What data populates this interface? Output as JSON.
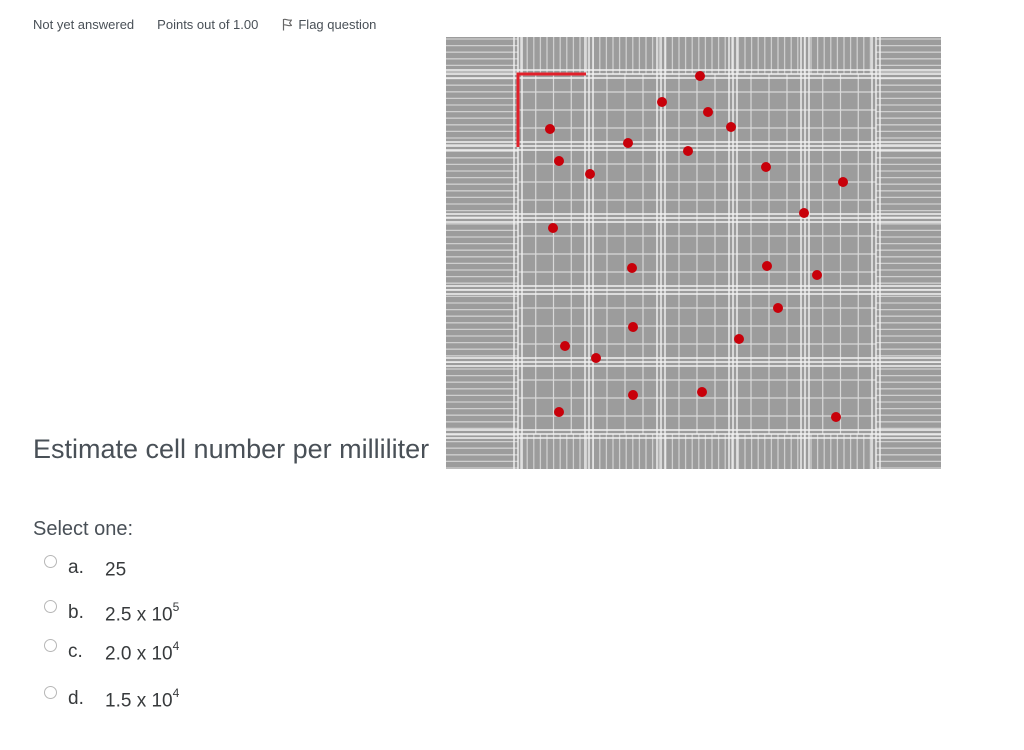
{
  "question_info": {
    "state": "Not yet answered",
    "grade": "Points out of 1.00",
    "flag_label": "Flag question"
  },
  "question": {
    "text": "Estimate cell number per milliliter"
  },
  "answers": {
    "prompt": "Select one:",
    "options": [
      {
        "letter": "a.",
        "text": "25",
        "exponent": ""
      },
      {
        "letter": "b.",
        "text": "2.5 x 10",
        "exponent": "5"
      },
      {
        "letter": "c.",
        "text": "2.0 x 10",
        "exponent": "4"
      },
      {
        "letter": "d.",
        "text": "1.5 x 10",
        "exponent": "4"
      }
    ]
  },
  "colors": {
    "cell_marker": "#c8000a",
    "grid_background": "#9c9c9c",
    "grid_lines": "#f2f2f2",
    "corner_bracket": "#e2202a"
  },
  "icons": {
    "flag": "flag-icon"
  }
}
